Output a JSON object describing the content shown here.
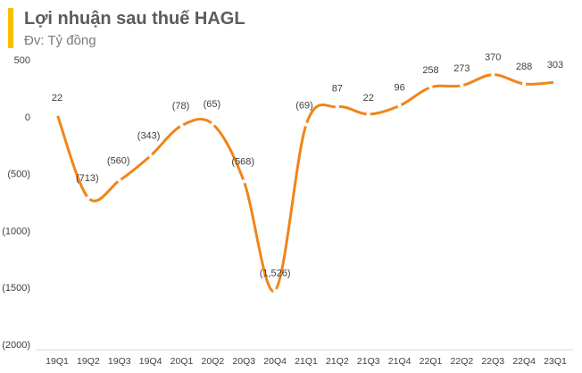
{
  "header": {
    "title": "Lợi nhuận sau thuế HAGL",
    "subtitle": "Đv: Tỷ đồng",
    "accent_color": "#f5c000"
  },
  "chart_data": {
    "type": "line",
    "categories": [
      "19Q1",
      "19Q2",
      "19Q3",
      "19Q4",
      "20Q1",
      "20Q2",
      "20Q3",
      "20Q4",
      "21Q1",
      "21Q2",
      "21Q3",
      "21Q4",
      "22Q1",
      "22Q2",
      "22Q3",
      "22Q4",
      "23Q1"
    ],
    "values": [
      22,
      -713,
      -560,
      -343,
      -78,
      -65,
      -568,
      -1526,
      -69,
      87,
      22,
      96,
      258,
      273,
      370,
      288,
      303
    ],
    "data_labels": [
      "22",
      "(713)",
      "(560)",
      "(343)",
      "(78)",
      "(65)",
      "(568)",
      "(1,526)",
      "(69)",
      "87",
      "22",
      "96",
      "258",
      "273",
      "370",
      "288",
      "303"
    ],
    "ylim": [
      -2000,
      500
    ],
    "yticks": [
      500,
      0,
      -500,
      -1000,
      -1500,
      -2000
    ],
    "ytick_labels": [
      "500",
      "0",
      "(500)",
      "(1000)",
      "(1500)",
      "(2000)"
    ],
    "series_color": "#f08519",
    "marker_color": "#ffffff",
    "grid": false,
    "smooth": true
  }
}
